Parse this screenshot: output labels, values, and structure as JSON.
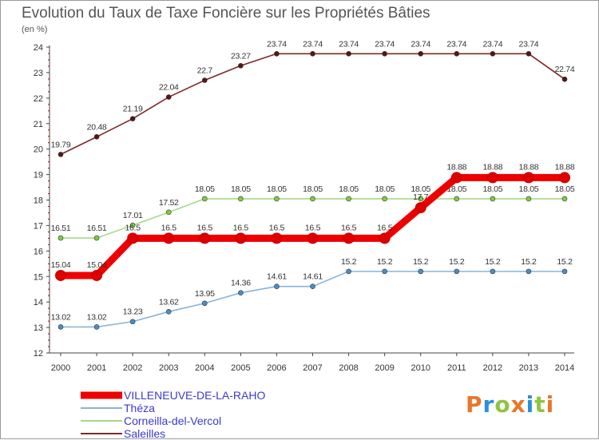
{
  "chart_data": {
    "type": "line",
    "title": "Evolution du Taux de Taxe Foncière sur les Propriétés Bâties",
    "ylabel": "(en %)",
    "xlabel": "",
    "ylim": [
      12,
      24
    ],
    "yticks": [
      "12",
      "13",
      "14",
      "15",
      "16",
      "17",
      "18",
      "19",
      "20",
      "21",
      "22",
      "23",
      "24"
    ],
    "categories": [
      "2000",
      "2001",
      "2002",
      "2003",
      "2004",
      "2005",
      "2006",
      "2007",
      "2008",
      "2009",
      "2010",
      "2011",
      "2012",
      "2013",
      "2014"
    ],
    "series": [
      {
        "name": "Saleilles",
        "color": "#7a2a2a",
        "marker": "#5a1414",
        "values": [
          19.79,
          20.48,
          21.19,
          22.04,
          22.7,
          23.27,
          23.74,
          23.74,
          23.74,
          23.74,
          23.74,
          23.74,
          23.74,
          23.74,
          22.74
        ],
        "labels": [
          "19.79",
          "20.48",
          "21.19",
          "22.04",
          "22.7",
          "23.27",
          "23.74",
          "23.74",
          "23.74",
          "23.74",
          "23.74",
          "23.74",
          "23.74",
          "23.74",
          "22.74"
        ]
      },
      {
        "name": "Corneilla-del-Vercol",
        "color": "#a6d98a",
        "marker": "#7ccf3c",
        "values": [
          16.51,
          16.51,
          17.01,
          17.52,
          18.05,
          18.05,
          18.05,
          18.05,
          18.05,
          18.05,
          18.05,
          18.05,
          18.05,
          18.05,
          18.05
        ],
        "labels": [
          "16.51",
          "16.51",
          "17.01",
          "17.52",
          "18.05",
          "18.05",
          "18.05",
          "18.05",
          "18.05",
          "18.05",
          "18.05",
          "18.05",
          "18.05",
          "18.05",
          "18.05"
        ]
      },
      {
        "name": "Théza",
        "color": "#8ab4d6",
        "marker": "#4a8ec8",
        "values": [
          13.02,
          13.02,
          13.23,
          13.62,
          13.95,
          14.36,
          14.61,
          14.61,
          15.2,
          15.2,
          15.2,
          15.2,
          15.2,
          15.2,
          15.2
        ],
        "labels": [
          "13.02",
          "13.02",
          "13.23",
          "13.62",
          "13.95",
          "14.36",
          "14.61",
          "14.61",
          "15.2",
          "15.2",
          "15.2",
          "15.2",
          "15.2",
          "15.2",
          "15.2"
        ]
      },
      {
        "name": "VILLENEUVE-DE-LA-RAHO",
        "color": "#ee0000",
        "marker": "#dd0000",
        "values": [
          15.04,
          15.04,
          16.5,
          16.5,
          16.5,
          16.5,
          16.5,
          16.5,
          16.5,
          16.5,
          17.7,
          18.88,
          18.88,
          18.88,
          18.88
        ],
        "labels": [
          "15.04",
          "15.04",
          "16.5",
          "16.5",
          "16.5",
          "16.5",
          "16.5",
          "16.5",
          "16.5",
          "16.5",
          "17.7",
          "18.88",
          "18.88",
          "18.88",
          "18.88"
        ]
      }
    ],
    "legend": [
      "VILLENEUVE-DE-LA-RAHO",
      "Théza",
      "Corneilla-del-Vercol",
      "Saleilles"
    ]
  },
  "brand": {
    "letters": [
      "P",
      "r",
      "o",
      "x",
      "i",
      "t",
      "i"
    ],
    "colors": [
      "#e8772a",
      "#2e8fd8",
      "#8cc63f",
      "#e8772a",
      "#2e8fd8",
      "#8cc63f",
      "#e8772a"
    ]
  }
}
